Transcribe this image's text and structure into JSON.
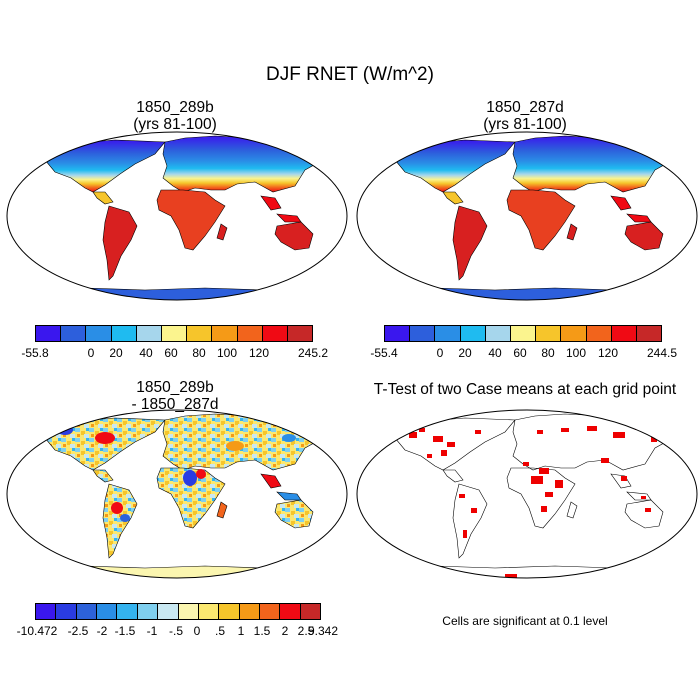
{
  "title": "DJF RNET (W/m^2)",
  "panels": [
    {
      "title1": "1850_289b",
      "title2": "(yrs 81-100)"
    },
    {
      "title1": "1850_287d",
      "title2": "(yrs 81-100)"
    },
    {
      "title1": "1850_289b",
      "title2": "- 1850_287d"
    },
    {
      "title1": "T-Test of two Case means at each grid point"
    }
  ],
  "colorbars": {
    "abs1": {
      "colors": [
        "#3a17ee",
        "#2d5fdc",
        "#2a8ee6",
        "#1fbbf0",
        "#a6d6ec",
        "#fbf48e",
        "#f6c52b",
        "#f59a17",
        "#f2641c",
        "#f00a14",
        "#c62828"
      ],
      "labels": [
        "-55.8",
        "0",
        "20",
        "40",
        "60",
        "80",
        "100",
        "120",
        "245.2"
      ]
    },
    "abs2": {
      "colors": [
        "#3a17ee",
        "#2d5fdc",
        "#2a8ee6",
        "#1fbbf0",
        "#a6d6ec",
        "#fbf48e",
        "#f6c52b",
        "#f59a17",
        "#f2641c",
        "#f00a14",
        "#c62828"
      ],
      "labels": [
        "-55.4",
        "0",
        "20",
        "40",
        "60",
        "80",
        "100",
        "120",
        "244.5"
      ]
    },
    "diff": {
      "colors": [
        "#3a17ee",
        "#2a3ce2",
        "#2d62da",
        "#2a8ee6",
        "#34b3ef",
        "#7fcfef",
        "#c9e8f2",
        "#fbf6b0",
        "#fbe870",
        "#f6c52b",
        "#f59a17",
        "#f2641c",
        "#f00a14",
        "#c62828"
      ],
      "labels": [
        "-10.472",
        "-2.5",
        "-2",
        "-1.5",
        "-1",
        "-.5",
        "0",
        ".5",
        "1",
        "1.5",
        "2",
        "2.5",
        "9.342"
      ]
    }
  },
  "note": "Cells are significant at 0.1 level"
}
